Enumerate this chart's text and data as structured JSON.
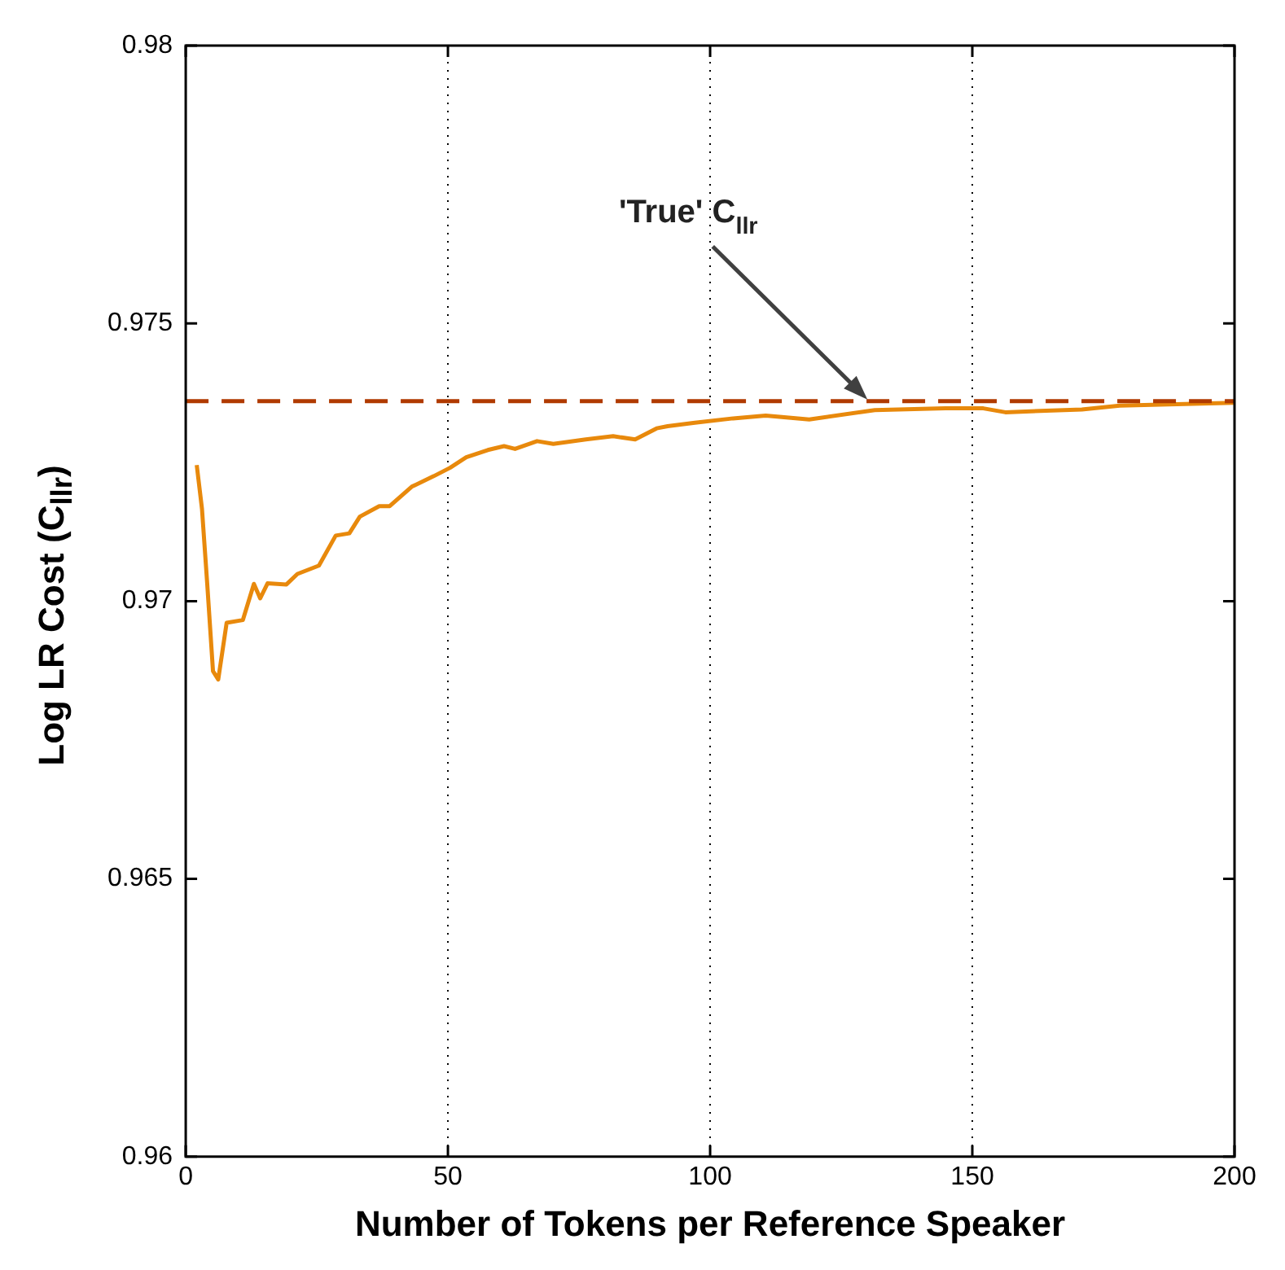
{
  "chart_data": {
    "type": "line",
    "xlabel": "Number of Tokens per Reference Speaker",
    "ylabel": "Log LR Cost (C$_{llr}$)",
    "x": [
      2.1,
      3.1,
      4.1,
      5.2,
      6.2,
      7.8,
      10.9,
      13,
      14.2,
      15.6,
      19.2,
      21.3,
      25.4,
      28.6,
      31.2,
      33.2,
      36.9,
      38.9,
      43.1,
      47.3,
      50.4,
      53.5,
      57.6,
      60.7,
      62.8,
      67,
      70.1,
      76.3,
      81.5,
      85.7,
      89.8,
      91.9,
      97.1,
      104.4,
      110.6,
      118.9,
      131.4,
      144.9,
      152.1,
      156.3,
      170.9,
      178.1,
      199.9
    ],
    "series": [
      {
        "color": "#e8890c",
        "values": [
          0.97245,
          0.97166,
          0.97031,
          0.96874,
          0.96859,
          0.96961,
          0.96966,
          0.97031,
          0.97005,
          0.97032,
          0.9703,
          0.97049,
          0.97064,
          0.97118,
          0.97122,
          0.97152,
          0.97171,
          0.97171,
          0.97206,
          0.97225,
          0.9724,
          0.97259,
          0.97272,
          0.97279,
          0.97274,
          0.97288,
          0.97283,
          0.97291,
          0.97297,
          0.97291,
          0.97311,
          0.97315,
          0.97321,
          0.97329,
          0.97334,
          0.97327,
          0.97344,
          0.97347,
          0.97347,
          0.9734,
          0.97345,
          0.97352,
          0.97357
        ]
      }
    ],
    "xlim": [
      0,
      200
    ],
    "xticks": [
      0,
      50,
      100,
      150,
      200
    ],
    "ylim": [
      0.96,
      0.98
    ],
    "yticks": [
      0.96,
      0.965,
      0.97,
      0.975,
      0.98
    ],
    "grid": "x",
    "legend": false,
    "marker": "none",
    "line_style": "solid",
    "ref_lines": [
      {
        "axis": "y",
        "value": 0.9736,
        "color": "#b03a00",
        "line_style": "dashed"
      }
    ],
    "annotations": [
      {
        "text": "'True' C$_{llr}$",
        "x": 130,
        "y": 0.9736
      }
    ]
  }
}
